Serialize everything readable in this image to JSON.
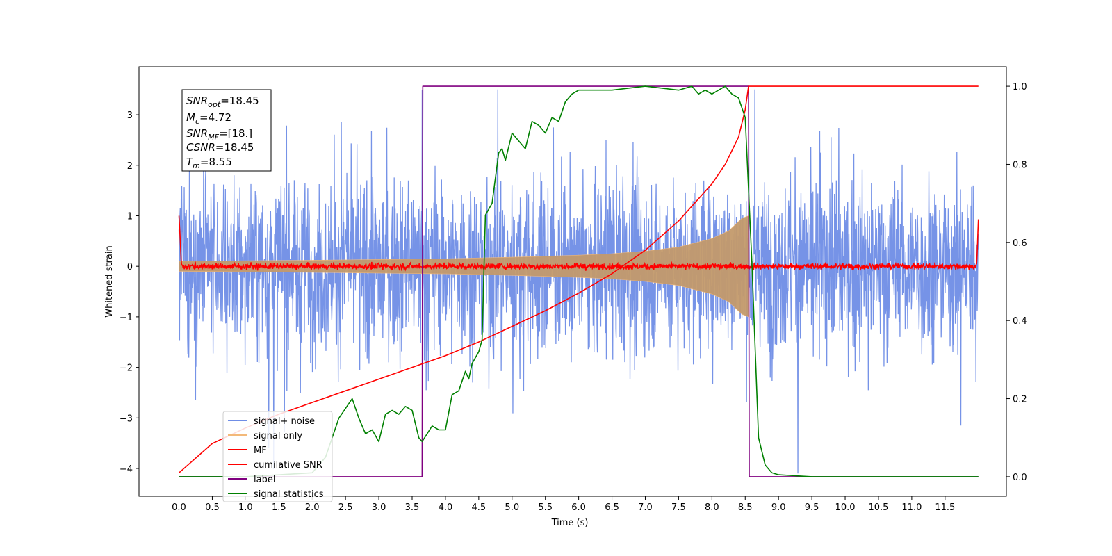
{
  "chart_data": {
    "type": "line",
    "title": "",
    "xlabel": "Time (s)",
    "ylabel": "Whitened strain",
    "ylabel_right": "",
    "xlim": [
      -0.6,
      12.42
    ],
    "ylim": [
      -4.55,
      3.95
    ],
    "ylim_right": [
      -0.05,
      1.05
    ],
    "x_ticks": [
      "0.0",
      "0.5",
      "1.0",
      "1.5",
      "2.0",
      "2.5",
      "3.0",
      "3.5",
      "4.0",
      "4.5",
      "5.0",
      "5.5",
      "6.0",
      "6.5",
      "7.0",
      "7.5",
      "8.0",
      "8.5",
      "9.0",
      "9.5",
      "10.0",
      "10.5",
      "11.0",
      "11.5"
    ],
    "y_ticks": [
      "3",
      "2",
      "1",
      "0",
      "−1",
      "−2",
      "−3",
      "−4"
    ],
    "y_ticks_right": [
      "1.0",
      "0.8",
      "0.6",
      "0.4",
      "0.2",
      "0.0"
    ],
    "grid": false,
    "legend_position": "lower-left",
    "info_box": {
      "snr_opt": {
        "var": "SNR",
        "sub": "opt",
        "value": "=18.45"
      },
      "mc": {
        "var": "M",
        "sub": "c",
        "value": "=4.72"
      },
      "snr_mf": {
        "var": "SNR",
        "sub": "MF",
        "value": "=[18.]"
      },
      "csnr": {
        "var": "CSNR",
        "sub": "",
        "value": "=18.45"
      },
      "tm": {
        "var": "T",
        "sub": "m",
        "value": "=8.55"
      }
    },
    "series": [
      {
        "name": "signal+ noise",
        "color": "#6f8de6",
        "axis": "left",
        "description": "noise band",
        "amplitude_typical": 1.0,
        "x_range": [
          0.0,
          12.0
        ]
      },
      {
        "name": "signal only",
        "color": "#f3b97a",
        "axis": "left",
        "envelope": {
          "x": [
            0.0,
            2.0,
            4.0,
            5.0,
            6.0,
            6.5,
            7.0,
            7.5,
            8.0,
            8.25,
            8.45,
            8.55
          ],
          "y": [
            0.1,
            0.12,
            0.15,
            0.18,
            0.22,
            0.25,
            0.3,
            0.38,
            0.55,
            0.7,
            0.95,
            1.0
          ]
        }
      },
      {
        "name": "MF",
        "color": "#ff0000",
        "axis": "left",
        "baseline": 0.0,
        "start_value": 1.0,
        "end_value": 0.93
      },
      {
        "name": "cumilative SNR",
        "color": "#ff0000",
        "axis": "right",
        "x": [
          0.0,
          0.5,
          1.0,
          1.5,
          2.0,
          2.5,
          3.0,
          3.5,
          4.0,
          4.5,
          5.0,
          5.5,
          6.0,
          6.5,
          7.0,
          7.5,
          8.0,
          8.2,
          8.4,
          8.5,
          8.55,
          12.0
        ],
        "y": [
          0.01,
          0.085,
          0.125,
          0.16,
          0.19,
          0.22,
          0.25,
          0.28,
          0.31,
          0.345,
          0.385,
          0.425,
          0.47,
          0.52,
          0.58,
          0.655,
          0.75,
          0.8,
          0.87,
          0.94,
          1.0,
          1.0
        ]
      },
      {
        "name": "label",
        "color": "#800080",
        "axis": "right",
        "x": [
          0.0,
          3.65,
          3.66,
          8.55,
          8.56,
          12.0
        ],
        "y": [
          0.0,
          0.0,
          1.0,
          1.0,
          0.0,
          0.0
        ]
      },
      {
        "name": "signal statistics",
        "color": "#008000",
        "axis": "right",
        "x": [
          0.0,
          1.0,
          2.0,
          2.2,
          2.4,
          2.6,
          2.7,
          2.8,
          2.9,
          3.0,
          3.1,
          3.2,
          3.3,
          3.4,
          3.5,
          3.6,
          3.65,
          3.8,
          3.9,
          4.0,
          4.1,
          4.2,
          4.3,
          4.35,
          4.4,
          4.5,
          4.55,
          4.6,
          4.7,
          4.8,
          4.85,
          4.9,
          5.0,
          5.1,
          5.2,
          5.3,
          5.4,
          5.5,
          5.6,
          5.7,
          5.8,
          5.9,
          6.0,
          6.2,
          6.5,
          7.0,
          7.5,
          7.7,
          7.8,
          7.9,
          8.0,
          8.1,
          8.2,
          8.3,
          8.4,
          8.5,
          8.6,
          8.7,
          8.8,
          8.9,
          9.0,
          9.5,
          12.0
        ],
        "y": [
          0.0,
          0.0,
          0.01,
          0.05,
          0.15,
          0.2,
          0.15,
          0.11,
          0.12,
          0.09,
          0.16,
          0.17,
          0.16,
          0.18,
          0.17,
          0.1,
          0.09,
          0.13,
          0.12,
          0.12,
          0.21,
          0.22,
          0.27,
          0.25,
          0.29,
          0.32,
          0.35,
          0.67,
          0.7,
          0.83,
          0.84,
          0.81,
          0.88,
          0.86,
          0.84,
          0.91,
          0.9,
          0.88,
          0.92,
          0.91,
          0.96,
          0.98,
          0.99,
          0.99,
          0.99,
          1.0,
          0.99,
          1.0,
          0.98,
          0.99,
          0.98,
          0.99,
          1.0,
          0.98,
          0.97,
          0.92,
          0.55,
          0.1,
          0.03,
          0.01,
          0.005,
          0.0,
          0.0
        ]
      }
    ]
  }
}
